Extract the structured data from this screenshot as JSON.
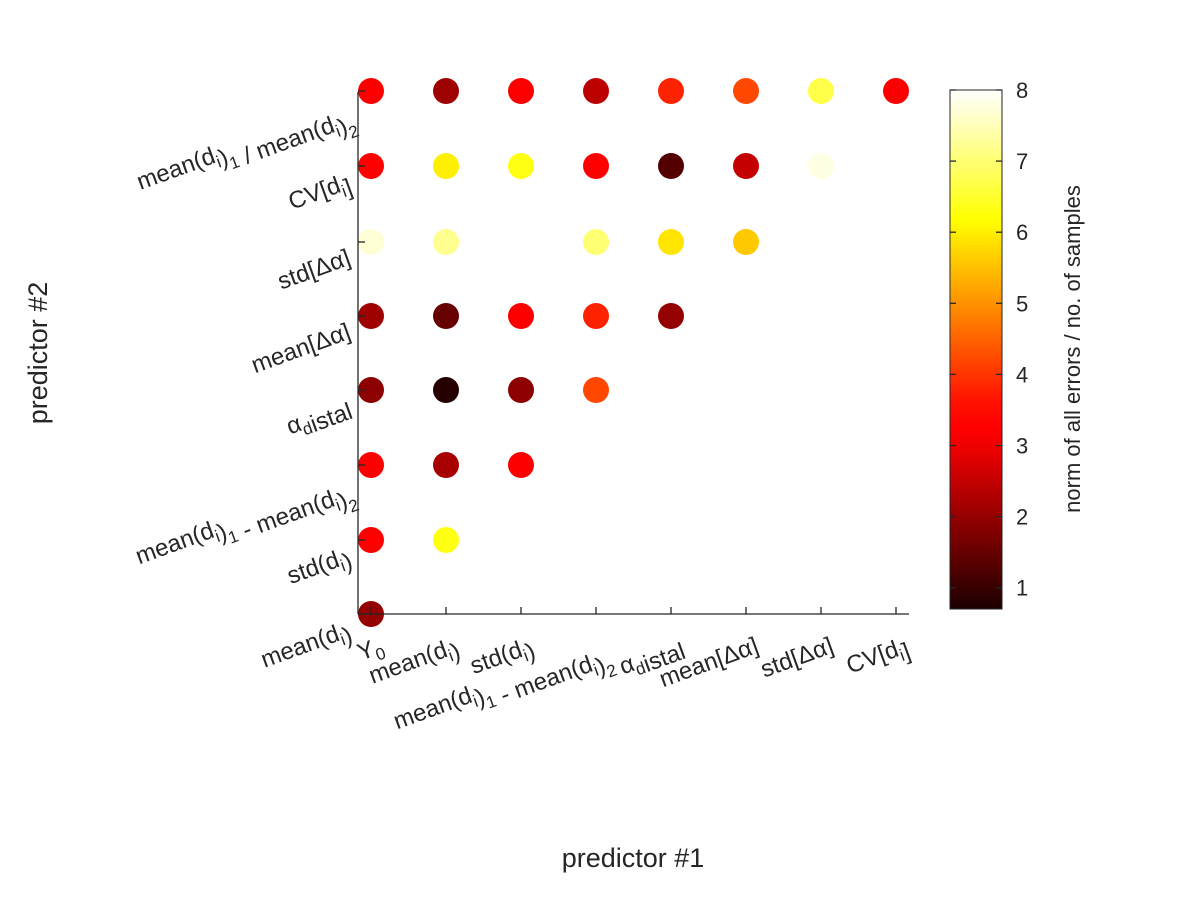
{
  "chart_data": {
    "type": "scatter",
    "xlabel": "predictor #1",
    "ylabel": "predictor #2",
    "x_tick_labels": [
      "Y_0",
      "mean(d_i)",
      "std(d_i)",
      "mean(d_i)_1 - mean(d_i)_2",
      "α_distal",
      "mean[Δα]",
      "std[Δα]",
      "CV[d_i]"
    ],
    "y_tick_labels": [
      "mean(d_i)",
      "std(d_i)",
      "mean(d_i)_1 - mean(d_i)_2",
      "α_distal",
      "mean[Δα]",
      "std[Δα]",
      "CV[d_i]",
      "mean(d_i)_1 / mean(d_i)_2"
    ],
    "colorbar": {
      "label": "norm of all errors / no. of samples",
      "range": [
        0.7,
        8
      ],
      "ticks": [
        1,
        2,
        3,
        4,
        5,
        6,
        7,
        8
      ],
      "colormap": "hot"
    },
    "points": [
      {
        "x": "Y_0",
        "y": "mean(d_i)",
        "value": 2.0
      },
      {
        "x": "Y_0",
        "y": "std(d_i)",
        "value": 3.4
      },
      {
        "x": "mean(d_i)",
        "y": "std(d_i)",
        "value": 6.3
      },
      {
        "x": "Y_0",
        "y": "mean(d_i)_1 - mean(d_i)_2",
        "value": 3.1
      },
      {
        "x": "mean(d_i)",
        "y": "mean(d_i)_1 - mean(d_i)_2",
        "value": 2.2
      },
      {
        "x": "std(d_i)",
        "y": "mean(d_i)_1 - mean(d_i)_2",
        "value": 3.1
      },
      {
        "x": "Y_0",
        "y": "α_distal",
        "value": 1.9
      },
      {
        "x": "mean(d_i)",
        "y": "α_distal",
        "value": 0.8
      },
      {
        "x": "std(d_i)",
        "y": "α_distal",
        "value": 1.9
      },
      {
        "x": "mean(d_i)_1 - mean(d_i)_2",
        "y": "α_distal",
        "value": 4.2
      },
      {
        "x": "Y_0",
        "y": "mean[Δα]",
        "value": 2.1
      },
      {
        "x": "mean(d_i)",
        "y": "mean[Δα]",
        "value": 1.5
      },
      {
        "x": "std(d_i)",
        "y": "mean[Δα]",
        "value": 3.1
      },
      {
        "x": "mean(d_i)_1 - mean(d_i)_2",
        "y": "mean[Δα]",
        "value": 3.8
      },
      {
        "x": "α_distal",
        "y": "mean[Δα]",
        "value": 2.0
      },
      {
        "x": "Y_0",
        "y": "std[Δα]",
        "value": 7.7
      },
      {
        "x": "mean(d_i)",
        "y": "std[Δα]",
        "value": 7.2
      },
      {
        "x": "mean(d_i)_1 - mean(d_i)_2",
        "y": "std[Δα]",
        "value": 7.0
      },
      {
        "x": "α_distal",
        "y": "std[Δα]",
        "value": 5.9
      },
      {
        "x": "mean[Δα]",
        "y": "std[Δα]",
        "value": 5.6
      },
      {
        "x": "Y_0",
        "y": "CV[d_i]",
        "value": 3.3
      },
      {
        "x": "mean(d_i)",
        "y": "CV[d_i]",
        "value": 6.0
      },
      {
        "x": "std(d_i)",
        "y": "CV[d_i]",
        "value": 6.3
      },
      {
        "x": "mean(d_i)_1 - mean(d_i)_2",
        "y": "CV[d_i]",
        "value": 3.4
      },
      {
        "x": "α_distal",
        "y": "CV[d_i]",
        "value": 1.3
      },
      {
        "x": "mean[Δα]",
        "y": "CV[d_i]",
        "value": 2.5
      },
      {
        "x": "std[Δα]",
        "y": "CV[d_i]",
        "value": 7.8
      },
      {
        "x": "Y_0",
        "y": "mean(d_i)_1 / mean(d_i)_2",
        "value": 3.1
      },
      {
        "x": "mean(d_i)",
        "y": "mean(d_i)_1 / mean(d_i)_2",
        "value": 2.1
      },
      {
        "x": "std(d_i)",
        "y": "mean(d_i)_1 / mean(d_i)_2",
        "value": 3.1
      },
      {
        "x": "mean(d_i)_1 - mean(d_i)_2",
        "y": "mean(d_i)_1 / mean(d_i)_2",
        "value": 2.4
      },
      {
        "x": "α_distal",
        "y": "mean(d_i)_1 / mean(d_i)_2",
        "value": 3.8
      },
      {
        "x": "mean[Δα]",
        "y": "mean(d_i)_1 / mean(d_i)_2",
        "value": 4.2
      },
      {
        "x": "std[Δα]",
        "y": "mean(d_i)_1 / mean(d_i)_2",
        "value": 6.7
      },
      {
        "x": "CV[d_i]",
        "y": "mean(d_i)_1 / mean(d_i)_2",
        "value": 3.1
      }
    ]
  }
}
